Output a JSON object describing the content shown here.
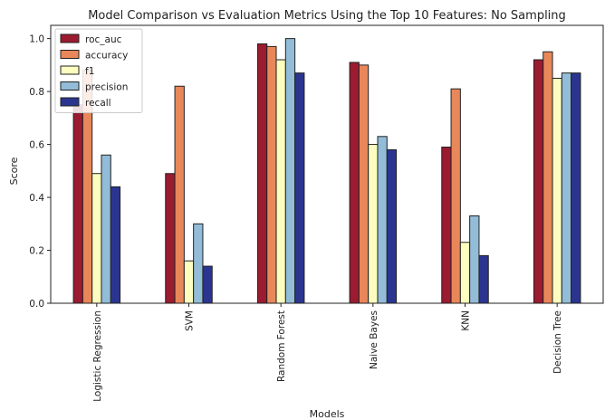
{
  "chart_data": {
    "type": "bar",
    "title": "Model Comparison vs Evaluation Metrics Using the Top 10 Features: No Sampling",
    "xlabel": "Models",
    "ylabel": "Score",
    "ylim": [
      0,
      1.05
    ],
    "yticks": [
      "0.0",
      "0.2",
      "0.4",
      "0.6",
      "0.8",
      "1.0"
    ],
    "categories": [
      "Logistic Regression",
      "SVM",
      "Random Forest",
      "Naive Bayes",
      "KNN",
      "Decision Tree"
    ],
    "legend_position": "top-left",
    "grid": false,
    "series": [
      {
        "name": "roc_auc",
        "color": "#9b1b30",
        "values": [
          0.75,
          0.49,
          0.98,
          0.91,
          0.59,
          0.92
        ]
      },
      {
        "name": "accuracy",
        "color": "#e8875a",
        "values": [
          0.88,
          0.82,
          0.97,
          0.9,
          0.81,
          0.95
        ]
      },
      {
        "name": "f1",
        "color": "#fdfdc0",
        "values": [
          0.49,
          0.16,
          0.92,
          0.6,
          0.23,
          0.85
        ]
      },
      {
        "name": "precision",
        "color": "#93bcd8",
        "values": [
          0.56,
          0.3,
          1.0,
          0.63,
          0.33,
          0.87
        ]
      },
      {
        "name": "recall",
        "color": "#2b3590",
        "values": [
          0.44,
          0.14,
          0.87,
          0.58,
          0.18,
          0.87
        ]
      }
    ]
  }
}
